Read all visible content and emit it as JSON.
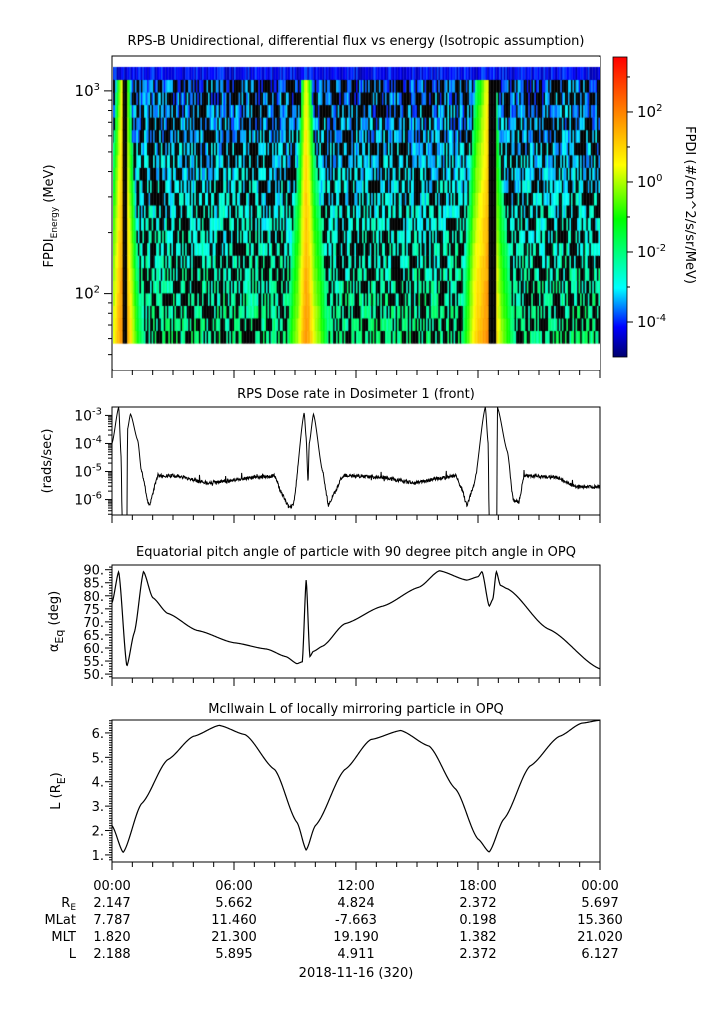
{
  "chart_data": [
    {
      "id": "spectrogram",
      "type": "heatmap",
      "title": "RPS-B  Unidirectional, differential flux vs energy (Isotropic assumption)",
      "ylabel": {
        "main": "FPDI",
        "sub": "Energy",
        "unit": " (MeV)"
      },
      "yscale": "log",
      "ylim": [
        42,
        1486
      ],
      "data_energy_range": [
        57,
        1312
      ],
      "energy_bins": 22,
      "xlim": [
        0,
        24
      ],
      "yticks": [
        {
          "v": 100,
          "base": "10",
          "exp": "2"
        },
        {
          "v": 1000,
          "base": "10",
          "exp": "3"
        }
      ],
      "colorbar": {
        "label": "FPDI (#/cm^2/s/sr/MeV)",
        "range_log10": [
          -5.0,
          3.57
        ],
        "ticks": [
          {
            "v": 2,
            "base": "10",
            "exp": "2"
          },
          {
            "v": 0,
            "base": "10",
            "exp": "0"
          },
          {
            "v": -2,
            "base": "10",
            "exp": "-2"
          },
          {
            "v": -4,
            "base": "10",
            "exp": "-4"
          }
        ],
        "stops": [
          {
            "t": 0,
            "color": "#00006e"
          },
          {
            "t": 0.1,
            "color": "#0000ff"
          },
          {
            "t": 0.23,
            "color": "#00ffff"
          },
          {
            "t": 0.46,
            "color": "#00ff00"
          },
          {
            "t": 0.64,
            "color": "#ffff00"
          },
          {
            "t": 0.82,
            "color": "#ff8000"
          },
          {
            "t": 1,
            "color": "#ff0000"
          }
        ]
      }
    },
    {
      "id": "dose",
      "type": "line",
      "title": "RPS  Dose rate in Dosimeter 1 (front)",
      "ylabel": "(rads/sec)",
      "yscale": "log",
      "ylim_log10": [
        -6.55,
        -2.7
      ],
      "yticks": [
        {
          "v": -3,
          "base": "10",
          "exp": "-3"
        },
        {
          "v": -4,
          "base": "10",
          "exp": "-4"
        },
        {
          "v": -5,
          "base": "10",
          "exp": "-5"
        },
        {
          "v": -6,
          "base": "10",
          "exp": "-6"
        }
      ],
      "x_hours": [
        0,
        0.33,
        0.45,
        0.5,
        0.74,
        0.76,
        0.91,
        1.27,
        1.45,
        1.82,
        2.27,
        3.09,
        4.73,
        7.27,
        8.0,
        8.36,
        8.73,
        8.91,
        9.45,
        9.55,
        9.64,
        9.7,
        9.91,
        10.36,
        10.64,
        10.91,
        11.36,
        13.1,
        14.9,
        16.0,
        16.9,
        17.2,
        17.45,
        17.8,
        18.36,
        18.5,
        18.55,
        18.93,
        18.95,
        19.45,
        19.73,
        20.0,
        20.27,
        21.8,
        22.9,
        24
      ],
      "log10_y": [
        -4.0,
        -2.7,
        -4.5,
        -7.0,
        -7.0,
        -3.5,
        -2.95,
        -3.9,
        -5.0,
        -6.2,
        -5.15,
        -5.15,
        -5.4,
        -5.2,
        -5.15,
        -5.8,
        -6.3,
        -6.2,
        -2.9,
        -3.8,
        -5.4,
        -4.0,
        -2.95,
        -5.0,
        -6.2,
        -5.8,
        -5.15,
        -5.2,
        -5.4,
        -5.25,
        -5.15,
        -5.6,
        -6.2,
        -5.5,
        -2.7,
        -4.0,
        -7.0,
        -7.0,
        -2.7,
        -4.3,
        -6.0,
        -6.1,
        -5.15,
        -5.2,
        -5.55,
        -5.55
      ]
    },
    {
      "id": "pitch",
      "type": "line",
      "title": "Equatorial pitch angle of particle with 90 degree pitch angle in OPQ",
      "ylabel": {
        "main": "α",
        "sub": "Eq",
        "unit": " (deg)"
      },
      "ylim": [
        48.5,
        91.8
      ],
      "yticks": [
        {
          "v": 90,
          "label": "90."
        },
        {
          "v": 85,
          "label": "85."
        },
        {
          "v": 80,
          "label": "80."
        },
        {
          "v": 75,
          "label": "75."
        },
        {
          "v": 70,
          "label": "70."
        },
        {
          "v": 65,
          "label": "65."
        },
        {
          "v": 60,
          "label": "60."
        },
        {
          "v": 55,
          "label": "55."
        },
        {
          "v": 50,
          "label": "50."
        }
      ],
      "x_hours": [
        0,
        0.33,
        0.73,
        1.1,
        1.55,
        2.0,
        2.73,
        4.2,
        6.0,
        7.6,
        8.55,
        9.1,
        9.36,
        9.55,
        9.73,
        9.9,
        10.36,
        11.45,
        13.3,
        15.1,
        16.1,
        17.45,
        18.0,
        18.2,
        18.55,
        18.73,
        18.9,
        19.1,
        19.45,
        21.45,
        24
      ],
      "y": [
        77.3,
        89.3,
        53,
        66,
        89.3,
        79.3,
        73.3,
        66.7,
        62,
        59.6,
        56.7,
        54,
        54.7,
        86.3,
        56.7,
        58.7,
        60.7,
        69.3,
        76,
        83.3,
        89.6,
        86,
        87.3,
        89.3,
        76,
        78.7,
        89.3,
        84,
        82.7,
        67.3,
        52
      ]
    },
    {
      "id": "lshell",
      "type": "line",
      "title": "McIlwain L of locally mirroring particle in OPQ",
      "ylabel": {
        "main": "L (R",
        "sub": "E",
        "unit": ")"
      },
      "ylim": [
        0.71,
        6.53
      ],
      "yticks": [
        {
          "v": 6,
          "label": "6."
        },
        {
          "v": 5,
          "label": "5."
        },
        {
          "v": 4,
          "label": "4."
        },
        {
          "v": 3,
          "label": "3."
        },
        {
          "v": 2,
          "label": "2."
        },
        {
          "v": 1,
          "label": "1."
        }
      ],
      "x_hours": [
        0,
        0.55,
        1.45,
        2.73,
        4.0,
        5.27,
        6.55,
        8.0,
        9.1,
        9.55,
        10.0,
        11.45,
        12.73,
        14.2,
        15.6,
        16.9,
        18.0,
        18.55,
        19.27,
        20.55,
        22.0,
        23.1,
        24
      ],
      "y": [
        2.2,
        1.1,
        3.1,
        4.9,
        5.86,
        6.31,
        5.93,
        4.5,
        2.33,
        1.2,
        2.2,
        4.5,
        5.73,
        6.1,
        5.46,
        3.7,
        1.65,
        1.12,
        2.47,
        4.64,
        5.86,
        6.4,
        6.52
      ]
    }
  ],
  "x_axis": {
    "ticks": [
      {
        "h": 0,
        "label": "00:00"
      },
      {
        "h": 6,
        "label": "06:00"
      },
      {
        "h": 12,
        "label": "12:00"
      },
      {
        "h": 18,
        "label": "18:00"
      },
      {
        "h": 24,
        "label": "00:00"
      }
    ],
    "ephemeris": [
      {
        "label": "R",
        "sub": "E",
        "values": [
          "2.147",
          "5.662",
          "4.824",
          "2.372",
          "5.697"
        ]
      },
      {
        "label": "MLat",
        "sub": "",
        "values": [
          "7.787",
          "11.460",
          "-7.663",
          "0.198",
          "15.360"
        ]
      },
      {
        "label": "MLT",
        "sub": "",
        "values": [
          "1.820",
          "21.300",
          "19.190",
          "1.382",
          "21.020"
        ]
      },
      {
        "label": "L",
        "sub": "",
        "values": [
          "2.188",
          "5.895",
          "4.911",
          "2.372",
          "6.127"
        ]
      }
    ],
    "date": "2018-11-16 (320)"
  }
}
